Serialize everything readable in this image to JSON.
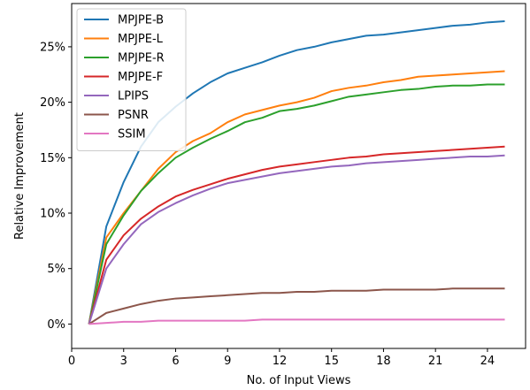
{
  "chart_data": {
    "type": "line",
    "title": "",
    "xlabel": "No. of Input Views",
    "ylabel": "Relative Improvement",
    "xlim": [
      0,
      26.2
    ],
    "ylim": [
      -0.022,
      0.289
    ],
    "xticks": [
      0,
      3,
      6,
      9,
      12,
      15,
      18,
      21,
      24
    ],
    "xtick_labels": [
      "0",
      "3",
      "6",
      "9",
      "12",
      "15",
      "18",
      "21",
      "24"
    ],
    "yticks": [
      0,
      0.05,
      0.1,
      0.15,
      0.2,
      0.25
    ],
    "ytick_labels": [
      "0%",
      "5%",
      "10%",
      "15%",
      "20%",
      "25%"
    ],
    "grid": false,
    "legend_position": "upper-left",
    "x": [
      1,
      2,
      3,
      4,
      5,
      6,
      7,
      8,
      9,
      10,
      11,
      12,
      13,
      14,
      15,
      16,
      17,
      18,
      19,
      20,
      21,
      22,
      23,
      24,
      25
    ],
    "series": [
      {
        "name": "MPJPE-B",
        "color": "#1f77b4",
        "values": [
          0,
          0.088,
          0.128,
          0.16,
          0.182,
          0.196,
          0.208,
          0.218,
          0.226,
          0.231,
          0.236,
          0.242,
          0.247,
          0.25,
          0.254,
          0.257,
          0.26,
          0.261,
          0.263,
          0.265,
          0.267,
          0.269,
          0.27,
          0.272,
          0.273
        ]
      },
      {
        "name": "MPJPE-L",
        "color": "#ff7f0e",
        "values": [
          0,
          0.078,
          0.1,
          0.12,
          0.14,
          0.155,
          0.165,
          0.172,
          0.182,
          0.189,
          0.193,
          0.197,
          0.2,
          0.204,
          0.21,
          0.213,
          0.215,
          0.218,
          0.22,
          0.223,
          0.224,
          0.225,
          0.226,
          0.227,
          0.228
        ]
      },
      {
        "name": "MPJPE-R",
        "color": "#2ca02c",
        "values": [
          0,
          0.072,
          0.098,
          0.12,
          0.136,
          0.15,
          0.159,
          0.167,
          0.174,
          0.182,
          0.186,
          0.192,
          0.194,
          0.197,
          0.201,
          0.205,
          0.207,
          0.209,
          0.211,
          0.212,
          0.214,
          0.215,
          0.215,
          0.216,
          0.216
        ]
      },
      {
        "name": "MPJPE-F",
        "color": "#d62728",
        "values": [
          0,
          0.058,
          0.08,
          0.095,
          0.106,
          0.115,
          0.121,
          0.126,
          0.131,
          0.135,
          0.139,
          0.142,
          0.144,
          0.146,
          0.148,
          0.15,
          0.151,
          0.153,
          0.154,
          0.155,
          0.156,
          0.157,
          0.158,
          0.159,
          0.16
        ]
      },
      {
        "name": "LPIPS",
        "color": "#9467bd",
        "values": [
          0,
          0.05,
          0.072,
          0.09,
          0.101,
          0.109,
          0.116,
          0.122,
          0.127,
          0.13,
          0.133,
          0.136,
          0.138,
          0.14,
          0.142,
          0.143,
          0.145,
          0.146,
          0.147,
          0.148,
          0.149,
          0.15,
          0.151,
          0.151,
          0.152
        ]
      },
      {
        "name": "PSNR",
        "color": "#8c564b",
        "values": [
          0,
          0.01,
          0.014,
          0.018,
          0.021,
          0.023,
          0.024,
          0.025,
          0.026,
          0.027,
          0.028,
          0.028,
          0.029,
          0.029,
          0.03,
          0.03,
          0.03,
          0.031,
          0.031,
          0.031,
          0.031,
          0.032,
          0.032,
          0.032,
          0.032
        ]
      },
      {
        "name": "SSIM",
        "color": "#e377c2",
        "values": [
          0,
          0.001,
          0.002,
          0.002,
          0.003,
          0.003,
          0.003,
          0.003,
          0.003,
          0.003,
          0.004,
          0.004,
          0.004,
          0.004,
          0.004,
          0.004,
          0.004,
          0.004,
          0.004,
          0.004,
          0.004,
          0.004,
          0.004,
          0.004,
          0.004
        ]
      }
    ]
  }
}
